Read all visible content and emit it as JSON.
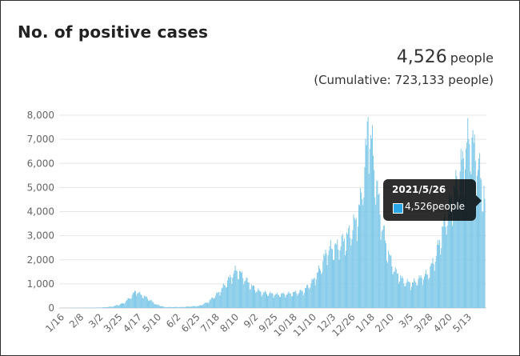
{
  "title": "No. of positive cases",
  "headline": {
    "value": "4,526",
    "unit": "people"
  },
  "cumulative": "(Cumulative: 723,133 people)",
  "colors": {
    "bar": "#7ec8e8",
    "grid": "#e6e6e6",
    "axis": "#cccccc",
    "tooltip_swatch": "#29a7e8"
  },
  "tooltip": {
    "date": "2021/5/26",
    "value": "4,526people"
  },
  "chart_data": {
    "type": "bar",
    "title": "No. of positive cases",
    "xlabel": "",
    "ylabel": "",
    "ylim": [
      0,
      8000
    ],
    "yticks": [
      "0",
      "1,000",
      "2,000",
      "3,000",
      "4,000",
      "5,000",
      "6,000",
      "7,000",
      "8,000"
    ],
    "xticks": [
      "1/16",
      "2/8",
      "3/2",
      "3/25",
      "4/17",
      "5/10",
      "6/2",
      "6/25",
      "7/18",
      "8/10",
      "9/2",
      "9/25",
      "10/18",
      "11/10",
      "12/3",
      "12/26",
      "1/18",
      "2/10",
      "3/5",
      "3/28",
      "4/20",
      "5/13"
    ],
    "grid": true,
    "series": [
      {
        "knots": [
          [
            "2020-01-16",
            0
          ],
          [
            "2020-03-01",
            20
          ],
          [
            "2020-03-15",
            60
          ],
          [
            "2020-03-28",
            200
          ],
          [
            "2020-04-05",
            450
          ],
          [
            "2020-04-11",
            700
          ],
          [
            "2020-04-17",
            560
          ],
          [
            "2020-04-25",
            400
          ],
          [
            "2020-05-05",
            150
          ],
          [
            "2020-05-15",
            40
          ],
          [
            "2020-06-05",
            40
          ],
          [
            "2020-06-25",
            90
          ],
          [
            "2020-07-05",
            250
          ],
          [
            "2020-07-18",
            650
          ],
          [
            "2020-08-01",
            1300
          ],
          [
            "2020-08-07",
            1560
          ],
          [
            "2020-08-14",
            1350
          ],
          [
            "2020-08-25",
            900
          ],
          [
            "2020-09-05",
            650
          ],
          [
            "2020-09-25",
            550
          ],
          [
            "2020-10-10",
            600
          ],
          [
            "2020-10-25",
            700
          ],
          [
            "2020-11-05",
            1100
          ],
          [
            "2020-11-15",
            1700
          ],
          [
            "2020-11-22",
            2400
          ],
          [
            "2020-12-03",
            2500
          ],
          [
            "2020-12-15",
            2900
          ],
          [
            "2020-12-26",
            3600
          ],
          [
            "2021-01-01",
            4500
          ],
          [
            "2021-01-07",
            6500
          ],
          [
            "2021-01-09",
            7850
          ],
          [
            "2021-01-13",
            6800
          ],
          [
            "2021-01-18",
            5300
          ],
          [
            "2021-01-25",
            3500
          ],
          [
            "2021-02-01",
            2300
          ],
          [
            "2021-02-10",
            1500
          ],
          [
            "2021-02-20",
            1100
          ],
          [
            "2021-03-01",
            1000
          ],
          [
            "2021-03-10",
            1200
          ],
          [
            "2021-03-20",
            1400
          ],
          [
            "2021-03-28",
            2000
          ],
          [
            "2021-04-05",
            3000
          ],
          [
            "2021-04-15",
            4300
          ],
          [
            "2021-04-22",
            5000
          ],
          [
            "2021-04-28",
            5800
          ],
          [
            "2021-05-08",
            7000
          ],
          [
            "2021-05-13",
            6600
          ],
          [
            "2021-05-20",
            5600
          ],
          [
            "2021-05-26",
            4526
          ]
        ]
      }
    ]
  }
}
